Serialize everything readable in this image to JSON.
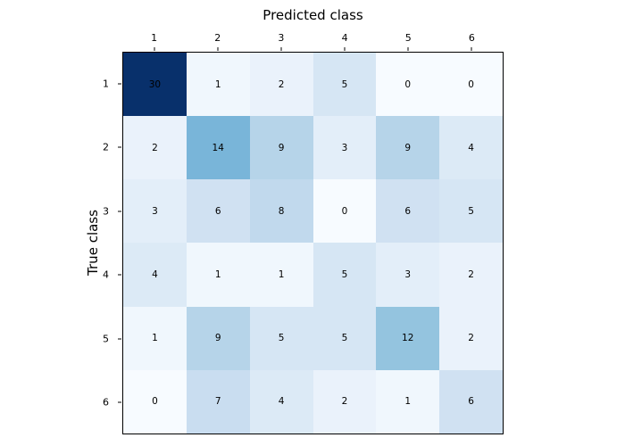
{
  "chart_data": {
    "type": "heatmap",
    "title": "Predicted class",
    "xlabel": "Predicted class",
    "ylabel": "True class",
    "x_tick_labels": [
      "1",
      "2",
      "3",
      "4",
      "5",
      "6"
    ],
    "y_tick_labels": [
      "1",
      "2",
      "3",
      "4",
      "5",
      "6"
    ],
    "matrix": [
      [
        30,
        1,
        2,
        5,
        0,
        0
      ],
      [
        2,
        14,
        9,
        3,
        9,
        4
      ],
      [
        3,
        6,
        8,
        0,
        6,
        5
      ],
      [
        4,
        1,
        1,
        5,
        3,
        2
      ],
      [
        1,
        9,
        5,
        5,
        12,
        2
      ],
      [
        0,
        7,
        4,
        2,
        1,
        6
      ]
    ],
    "colormap": "Blues",
    "vmin": 0,
    "vmax": 30,
    "colormap_stops": [
      [
        0.0,
        "#f7fbff"
      ],
      [
        0.125,
        "#deebf7"
      ],
      [
        0.25,
        "#c6dbef"
      ],
      [
        0.375,
        "#9ecae1"
      ],
      [
        0.5,
        "#6baed6"
      ],
      [
        0.625,
        "#4292c6"
      ],
      [
        0.75,
        "#2171b5"
      ],
      [
        0.875,
        "#08519c"
      ],
      [
        1.0,
        "#08306b"
      ]
    ],
    "grid": "off",
    "legend": "none",
    "colors": {
      "background": "#ffffff",
      "axis_border": "#000000",
      "text": "#000000"
    }
  }
}
